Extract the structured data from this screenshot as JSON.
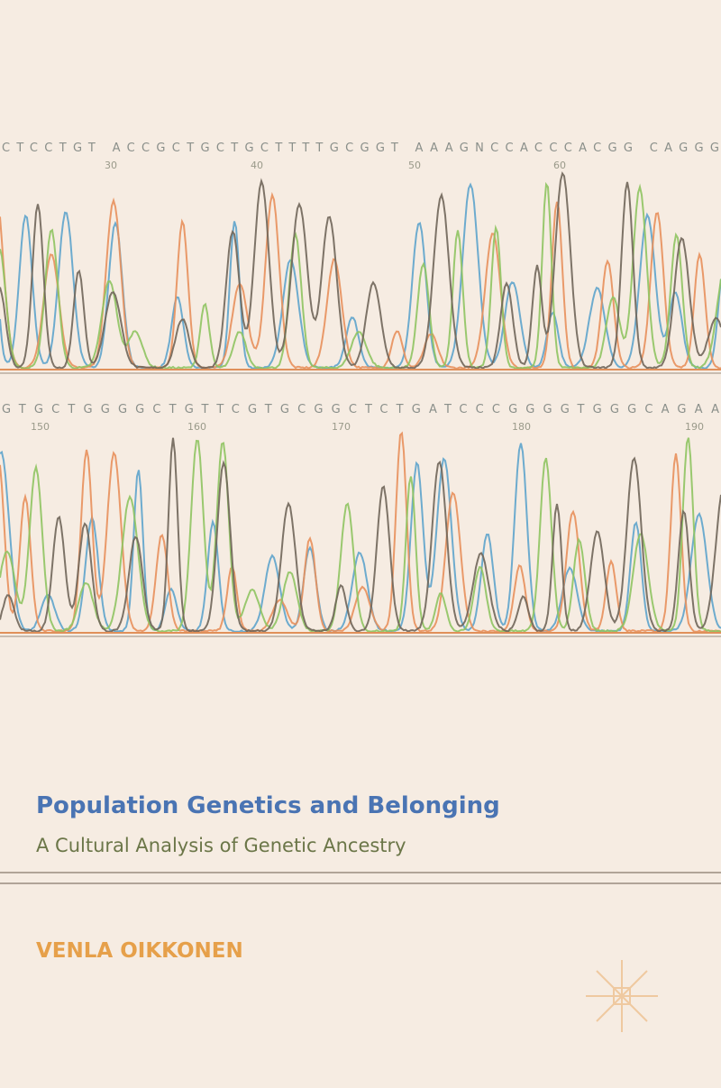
{
  "cover": {
    "sequence_rows": [
      {
        "bases": "CTCCTGT ACCGCTGCTGCTTTTGCGGT AAAGNCCACCCACGG CAGGG",
        "positions": [
          "30",
          "40",
          "50",
          "60"
        ]
      },
      {
        "bases": "GTGCTGGGGCTGTTCGTGCGGCTCTGATCCCGGGGTGGGCAGAA",
        "positions": [
          "150",
          "160",
          "170",
          "180",
          "190"
        ]
      }
    ],
    "title": "Population Genetics and Belonging",
    "subtitle": "A Cultural Analysis of Genetic Ancestry",
    "author": "VENLA OIKKONEN"
  }
}
